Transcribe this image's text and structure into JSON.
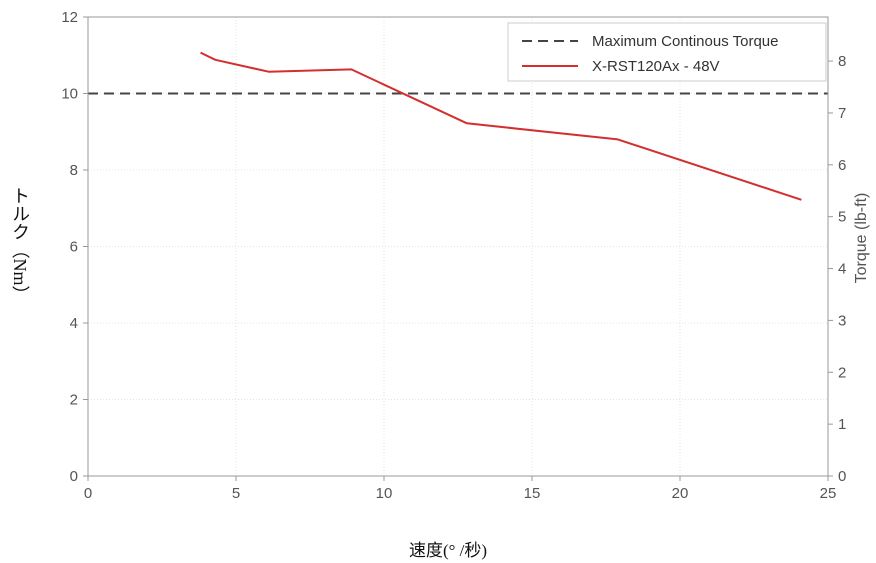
{
  "chart_data": {
    "type": "line",
    "xlabel": "速度(°  /秒)",
    "ylabel": "トルク（Nm）",
    "ylabel_right": "Torque (lb-ft)",
    "xlim": [
      0,
      25
    ],
    "ylim": [
      0,
      12
    ],
    "ylim_right": [
      0,
      8.85
    ],
    "x_ticks": [
      0,
      5,
      10,
      15,
      20,
      25
    ],
    "y_ticks": [
      0,
      2,
      4,
      6,
      8,
      10,
      12
    ],
    "y_ticks_right": [
      0,
      1,
      2,
      3,
      4,
      5,
      6,
      7,
      8
    ],
    "grid": true,
    "legend_position": "top-right",
    "series": [
      {
        "name": "Maximum Continous Torque",
        "style": "dashed",
        "color": "#444444",
        "x": [
          0,
          25
        ],
        "y": [
          10,
          10
        ]
      },
      {
        "name": "X-RST120Ax - 48V",
        "style": "solid",
        "color": "#d32f2f",
        "x": [
          3.8,
          4.3,
          6.1,
          8.9,
          12.8,
          17.9,
          24.1
        ],
        "y": [
          11.07,
          10.88,
          10.57,
          10.63,
          9.22,
          8.8,
          7.22
        ]
      }
    ]
  }
}
